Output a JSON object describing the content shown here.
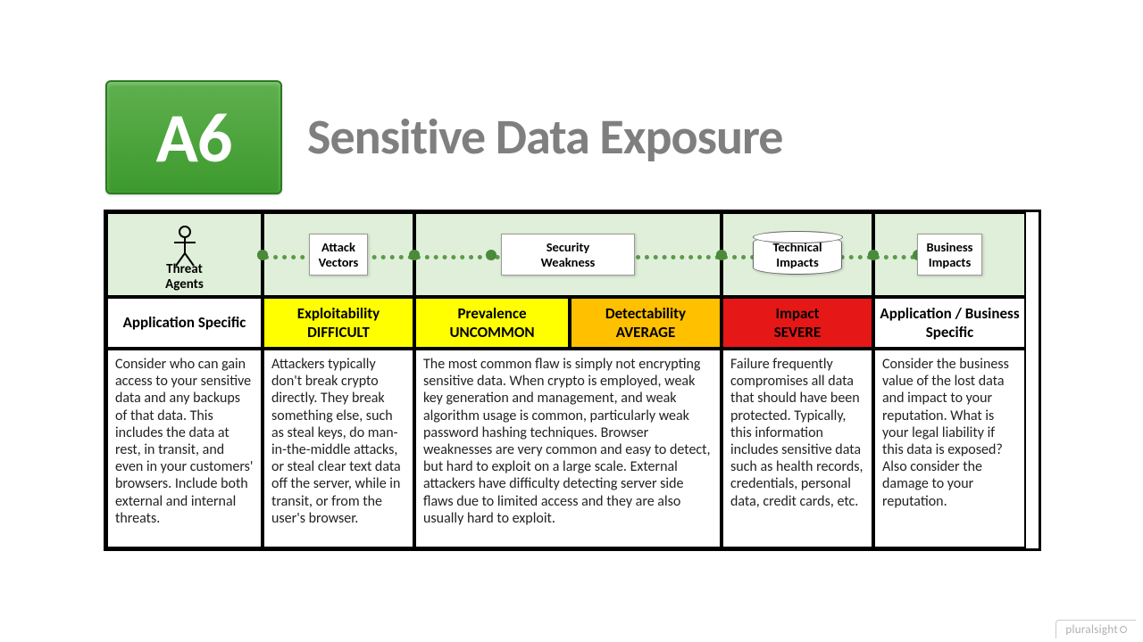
{
  "badge": {
    "code": "A6",
    "bg_gradient_top": "#5fb04f",
    "bg_gradient_bottom": "#3d9a2d",
    "border": "#2a7a1e",
    "text_color": "#ffffff"
  },
  "title": {
    "text": "Sensitive Data Exposure",
    "color": "#7f7f7f",
    "fontsize": 56
  },
  "flow": {
    "bg": "#e0efd9",
    "line_color": "#5a9a4a",
    "dot_color": "#4a8a3a",
    "nodes": {
      "threat_agents": "Threat\nAgents",
      "attack_vectors": "Attack\nVectors",
      "security_weakness": "Security\nWeakness",
      "technical_impacts": "Technical\nImpacts",
      "business_impacts": "Business\nImpacts"
    }
  },
  "ratings": [
    {
      "label": "Application Specific",
      "value": "",
      "bg": "#ffffff",
      "color": "#000000"
    },
    {
      "label": "Exploitability",
      "value": "DIFFICULT",
      "bg": "#ffff00",
      "color": "#000000"
    },
    {
      "label": "Prevalence",
      "value": "UNCOMMON",
      "bg": "#ffff00",
      "color": "#000000"
    },
    {
      "label": "Detectability",
      "value": "AVERAGE",
      "bg": "#ffc000",
      "color": "#000000"
    },
    {
      "label": "Impact",
      "value": "SEVERE",
      "bg": "#e61717",
      "color": "#000000"
    },
    {
      "label": "Application / Business Specific",
      "value": "",
      "bg": "#ffffff",
      "color": "#000000"
    }
  ],
  "descriptions": [
    "Consider who can gain access to your sensitive data and any backups of that data. This includes the data at rest, in transit, and even in your customers' browsers. Include both external and internal threats.",
    "Attackers typically don't break crypto directly. They break something else, such as steal keys, do man-in-the-middle attacks, or steal clear text data off the server, while in transit, or from the user's browser.",
    "The most common flaw is simply not encrypting sensitive data. When crypto is employed, weak key generation and management, and weak algorithm usage is common, particularly weak password hashing techniques. Browser weaknesses are very common and easy to detect, but hard to exploit on a large scale. External attackers have difficulty detecting server side flaws due to limited access and they are also usually hard to exploit.",
    "Failure frequently compromises all data that should have been protected. Typically, this information includes  sensitive data such as health records, credentials, personal data, credit cards, etc.",
    "Consider the business value of the lost data and impact to your reputation. What is your legal liability if this data is exposed? Also consider the damage to your reputation."
  ],
  "footer": "pluralsight"
}
